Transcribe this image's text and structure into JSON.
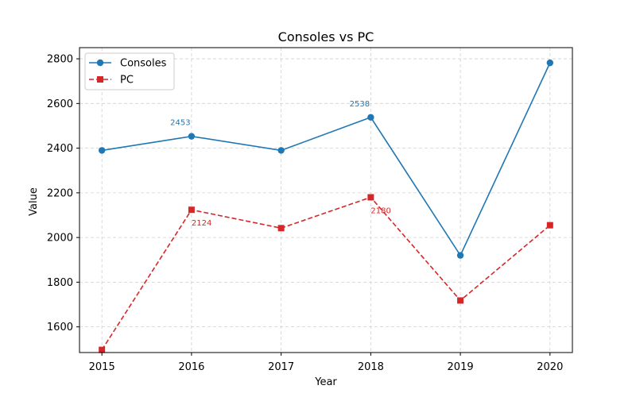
{
  "chart_data": {
    "type": "line",
    "title": "Consoles vs PC",
    "xlabel": "Year",
    "ylabel": "Value",
    "x": [
      2015,
      2016,
      2017,
      2018,
      2019,
      2020
    ],
    "x_tick_labels": [
      "2015",
      "2016",
      "2017",
      "2018",
      "2019",
      "2020"
    ],
    "y_ticks": [
      1600,
      1800,
      2000,
      2200,
      2400,
      2600,
      2800
    ],
    "y_tick_labels": [
      "1600",
      "1800",
      "2000",
      "2200",
      "2400",
      "2600",
      "2800"
    ],
    "xlim": [
      2014.75,
      2020.25
    ],
    "ylim": [
      1485,
      2850
    ],
    "grid": true,
    "legend": "top-left",
    "series": [
      {
        "name": "Consoles",
        "color": "#1f77b4",
        "linestyle": "solid",
        "marker": "circle",
        "values": [
          2390,
          2453,
          2390,
          2538,
          1920,
          2782
        ]
      },
      {
        "name": "PC",
        "color": "#d62728",
        "linestyle": "dashed",
        "marker": "square",
        "values": [
          1497,
          2124,
          2042,
          2180,
          1718,
          2055
        ]
      }
    ],
    "annotations": [
      {
        "series": 0,
        "index": 1,
        "text": "2453",
        "position": "above"
      },
      {
        "series": 0,
        "index": 3,
        "text": "2538",
        "position": "above"
      },
      {
        "series": 1,
        "index": 1,
        "text": "2124",
        "position": "below"
      },
      {
        "series": 1,
        "index": 3,
        "text": "2180",
        "position": "below"
      }
    ]
  }
}
